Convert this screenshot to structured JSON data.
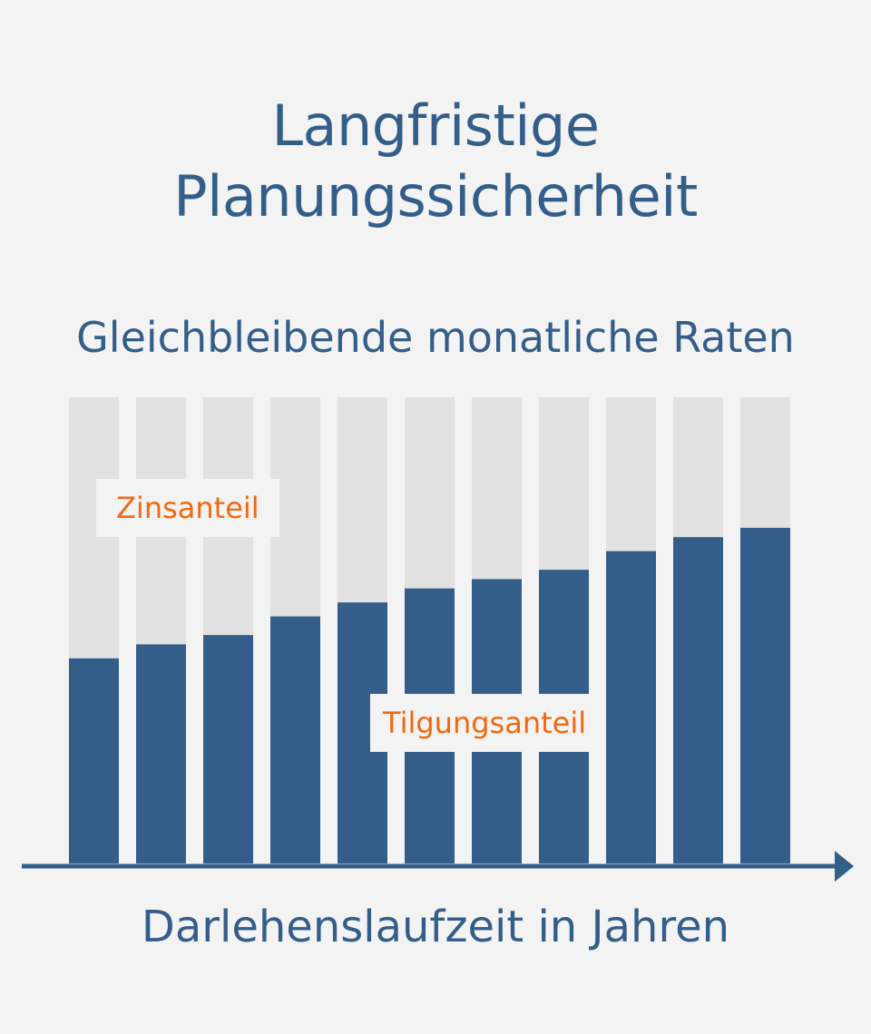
{
  "title_lines": [
    "Langfristige",
    "Planungssicherheit"
  ],
  "subtitle": "Gleichbleibende monatliche Raten",
  "colors": {
    "background": "#f3f3f3",
    "text": "#345e8a",
    "principal": "#345e8a",
    "interest": "#e2e2e2",
    "label": "#f0690f"
  },
  "chart_data": {
    "type": "bar",
    "stacked": true,
    "categories": [
      "",
      "",
      "",
      "",
      "",
      "",
      "",
      "",
      "",
      "",
      ""
    ],
    "series": [
      {
        "name": "Tilgungsanteil",
        "values": [
          44,
          47,
          49,
          53,
          56,
          59,
          61,
          63,
          67,
          70,
          72
        ]
      },
      {
        "name": "Zinsanteil",
        "values": [
          56,
          53,
          51,
          47,
          44,
          41,
          39,
          37,
          33,
          30,
          28
        ]
      }
    ],
    "series_labels": [
      "Zinsanteil",
      "Tilgungsanteil"
    ],
    "xlabel": "Darlehenslaufzeit in Jahren",
    "ylabel": "",
    "ylim": [
      0,
      100
    ],
    "grid": false,
    "legend": "inline"
  }
}
